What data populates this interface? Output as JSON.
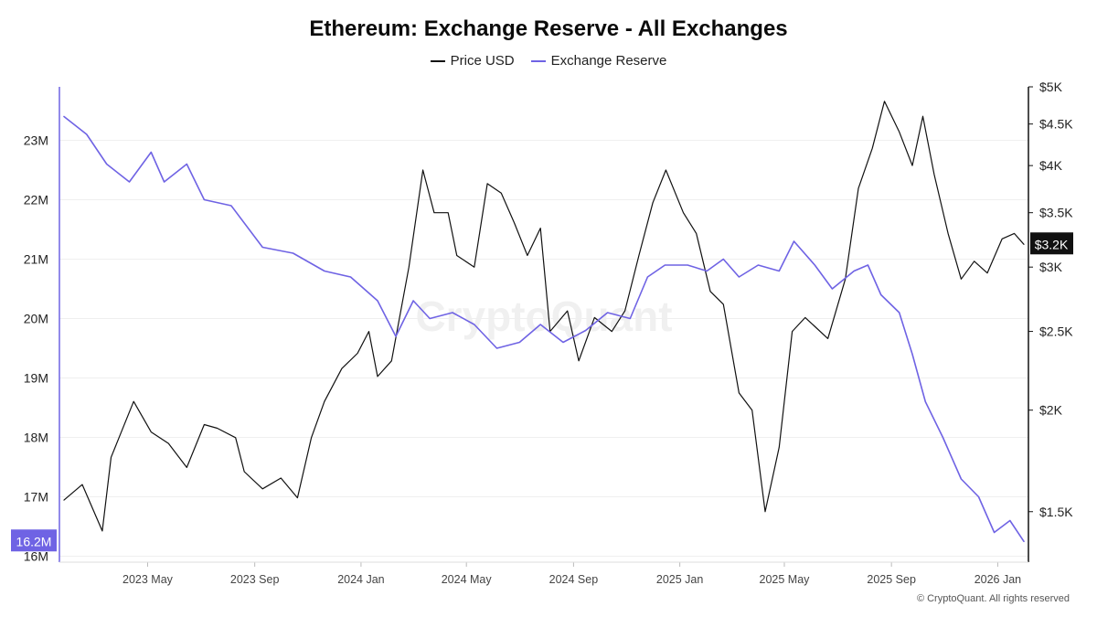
{
  "chart_data": {
    "type": "line",
    "title": "Ethereum: Exchange Reserve - All Exchanges",
    "watermark": "CryptoQuant",
    "footer": "© CryptoQuant. All rights reserved",
    "x_ticks": [
      "2023 May",
      "2023 Sep",
      "2024 Jan",
      "2024 May",
      "2024 Sep",
      "2025 Jan",
      "2025 May",
      "2025 Sep",
      "2026 Jan"
    ],
    "x_tick_dates": [
      "2023-05-01",
      "2023-09-01",
      "2024-01-01",
      "2024-05-01",
      "2024-09-01",
      "2025-01-01",
      "2025-05-01",
      "2025-09-01",
      "2026-01-01"
    ],
    "x_range": [
      "2023-01-25",
      "2026-01-31"
    ],
    "left_axis": {
      "ticks": [
        "23M",
        "22M",
        "21M",
        "20M",
        "19M",
        "18M",
        "17M",
        "16M"
      ],
      "range": [
        15.9,
        23.9
      ],
      "current_label": "16.2M",
      "color": "#6f63e4"
    },
    "right_axis": {
      "ticks": [
        "$5K",
        "$4.5K",
        "$4K",
        "$3.5K",
        "$3K",
        "$2.5K",
        "$2K",
        "$1.5K"
      ],
      "tick_values": [
        5000,
        4500,
        4000,
        3500,
        3000,
        2500,
        2000,
        1500
      ],
      "range": [
        1300,
        5000
      ],
      "scale": "log",
      "current_label": "$3.2K",
      "color": "#111111"
    },
    "grid": "horizontal",
    "legend_position": "top-center",
    "series": [
      {
        "name": "Price USD",
        "axis": "right",
        "color": "#111111",
        "points": [
          [
            "2023-01-25",
            1550
          ],
          [
            "2023-02-15",
            1620
          ],
          [
            "2023-03-10",
            1420
          ],
          [
            "2023-03-20",
            1750
          ],
          [
            "2023-04-15",
            2050
          ],
          [
            "2023-05-05",
            1880
          ],
          [
            "2023-05-25",
            1820
          ],
          [
            "2023-06-15",
            1700
          ],
          [
            "2023-07-05",
            1920
          ],
          [
            "2023-07-20",
            1900
          ],
          [
            "2023-08-10",
            1850
          ],
          [
            "2023-08-20",
            1680
          ],
          [
            "2023-09-10",
            1600
          ],
          [
            "2023-10-01",
            1650
          ],
          [
            "2023-10-20",
            1560
          ],
          [
            "2023-11-05",
            1850
          ],
          [
            "2023-11-20",
            2050
          ],
          [
            "2023-12-10",
            2250
          ],
          [
            "2023-12-28",
            2350
          ],
          [
            "2024-01-10",
            2500
          ],
          [
            "2024-01-20",
            2200
          ],
          [
            "2024-02-05",
            2300
          ],
          [
            "2024-02-25",
            3000
          ],
          [
            "2024-03-12",
            3950
          ],
          [
            "2024-03-25",
            3500
          ],
          [
            "2024-04-10",
            3500
          ],
          [
            "2024-04-20",
            3100
          ],
          [
            "2024-05-10",
            3000
          ],
          [
            "2024-05-25",
            3800
          ],
          [
            "2024-06-10",
            3700
          ],
          [
            "2024-06-25",
            3400
          ],
          [
            "2024-07-10",
            3100
          ],
          [
            "2024-07-25",
            3350
          ],
          [
            "2024-08-05",
            2500
          ],
          [
            "2024-08-25",
            2650
          ],
          [
            "2024-09-07",
            2300
          ],
          [
            "2024-09-25",
            2600
          ],
          [
            "2024-10-15",
            2500
          ],
          [
            "2024-10-30",
            2650
          ],
          [
            "2024-11-15",
            3100
          ],
          [
            "2024-12-01",
            3600
          ],
          [
            "2024-12-16",
            3950
          ],
          [
            "2025-01-05",
            3500
          ],
          [
            "2025-01-20",
            3300
          ],
          [
            "2025-02-05",
            2800
          ],
          [
            "2025-02-20",
            2700
          ],
          [
            "2025-03-10",
            2100
          ],
          [
            "2025-03-25",
            2000
          ],
          [
            "2025-04-09",
            1500
          ],
          [
            "2025-04-25",
            1800
          ],
          [
            "2025-05-10",
            2500
          ],
          [
            "2025-05-25",
            2600
          ],
          [
            "2025-06-20",
            2450
          ],
          [
            "2025-07-10",
            2900
          ],
          [
            "2025-07-25",
            3750
          ],
          [
            "2025-08-10",
            4200
          ],
          [
            "2025-08-24",
            4800
          ],
          [
            "2025-09-10",
            4400
          ],
          [
            "2025-09-25",
            4000
          ],
          [
            "2025-10-07",
            4600
          ],
          [
            "2025-10-20",
            3900
          ],
          [
            "2025-11-05",
            3300
          ],
          [
            "2025-11-20",
            2900
          ],
          [
            "2025-12-05",
            3050
          ],
          [
            "2025-12-20",
            2950
          ],
          [
            "2026-01-06",
            3250
          ],
          [
            "2026-01-20",
            3300
          ],
          [
            "2026-01-31",
            3200
          ]
        ]
      },
      {
        "name": "Exchange Reserve",
        "axis": "left",
        "color": "#6f63e4",
        "points": [
          [
            "2023-01-25",
            23.4
          ],
          [
            "2023-02-20",
            23.1
          ],
          [
            "2023-03-15",
            22.6
          ],
          [
            "2023-04-10",
            22.3
          ],
          [
            "2023-05-05",
            22.8
          ],
          [
            "2023-05-20",
            22.3
          ],
          [
            "2023-06-15",
            22.6
          ],
          [
            "2023-07-05",
            22.0
          ],
          [
            "2023-08-05",
            21.9
          ],
          [
            "2023-09-10",
            21.2
          ],
          [
            "2023-10-15",
            21.1
          ],
          [
            "2023-11-20",
            20.8
          ],
          [
            "2023-12-20",
            20.7
          ],
          [
            "2024-01-20",
            20.3
          ],
          [
            "2024-02-10",
            19.7
          ],
          [
            "2024-03-01",
            20.3
          ],
          [
            "2024-03-20",
            20.0
          ],
          [
            "2024-04-15",
            20.1
          ],
          [
            "2024-05-10",
            19.9
          ],
          [
            "2024-06-05",
            19.5
          ],
          [
            "2024-07-01",
            19.6
          ],
          [
            "2024-07-25",
            19.9
          ],
          [
            "2024-08-20",
            19.6
          ],
          [
            "2024-09-15",
            19.8
          ],
          [
            "2024-10-10",
            20.1
          ],
          [
            "2024-11-05",
            20.0
          ],
          [
            "2024-11-25",
            20.7
          ],
          [
            "2024-12-15",
            20.9
          ],
          [
            "2025-01-10",
            20.9
          ],
          [
            "2025-02-01",
            20.8
          ],
          [
            "2025-02-20",
            21.0
          ],
          [
            "2025-03-10",
            20.7
          ],
          [
            "2025-04-01",
            20.9
          ],
          [
            "2025-04-25",
            20.8
          ],
          [
            "2025-05-12",
            21.3
          ],
          [
            "2025-06-05",
            20.9
          ],
          [
            "2025-06-25",
            20.5
          ],
          [
            "2025-07-20",
            20.8
          ],
          [
            "2025-08-05",
            20.9
          ],
          [
            "2025-08-20",
            20.4
          ],
          [
            "2025-09-10",
            20.1
          ],
          [
            "2025-09-25",
            19.4
          ],
          [
            "2025-10-10",
            18.6
          ],
          [
            "2025-10-30",
            18.0
          ],
          [
            "2025-11-20",
            17.3
          ],
          [
            "2025-12-10",
            17.0
          ],
          [
            "2025-12-28",
            16.4
          ],
          [
            "2026-01-15",
            16.6
          ],
          [
            "2026-01-31",
            16.25
          ]
        ]
      }
    ]
  }
}
